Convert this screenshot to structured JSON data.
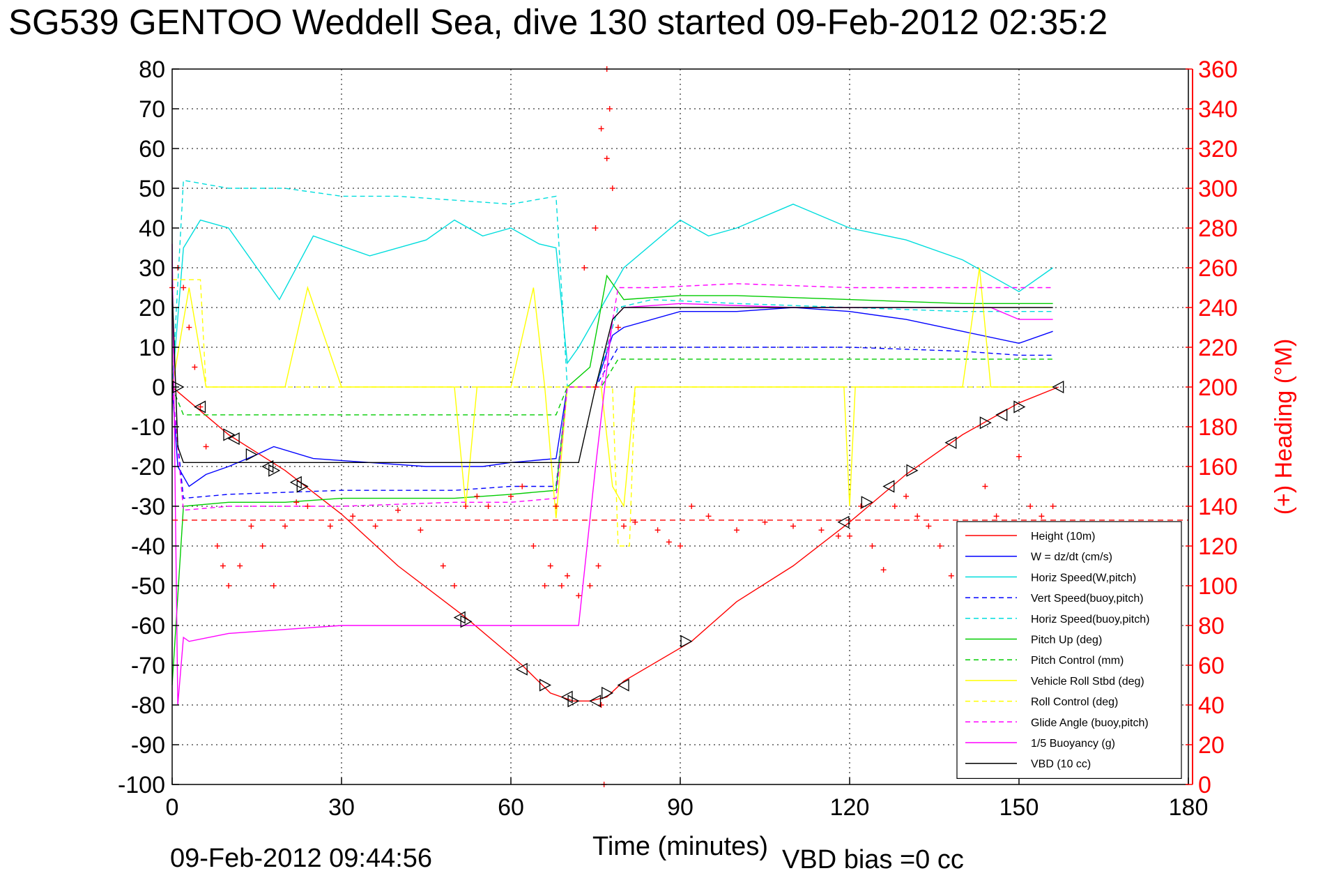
{
  "title": "SG539 GENTOO Weddell Sea, dive 130 started 09-Feb-2012 02:35:2",
  "footer": {
    "timestamp": "09-Feb-2012 09:44:56",
    "vbd_bias": "VBD bias =0 cc"
  },
  "colors": {
    "heading": "#ff0000"
  },
  "chart_data": {
    "type": "line",
    "xlabel": "Time (minutes)",
    "ylabel": "",
    "y2label": "(+) Heading (°M)",
    "xlim": [
      0,
      180
    ],
    "ylim": [
      -100,
      80
    ],
    "y2lim": [
      0,
      360
    ],
    "xticks": [
      0,
      30,
      60,
      90,
      120,
      150,
      180
    ],
    "yticks": [
      80,
      70,
      60,
      50,
      40,
      30,
      20,
      10,
      0,
      -10,
      -20,
      -30,
      -40,
      -50,
      -60,
      -70,
      -80,
      -90,
      -100
    ],
    "y2ticks": [
      360,
      340,
      320,
      300,
      280,
      260,
      240,
      220,
      200,
      180,
      160,
      140,
      120,
      100,
      80,
      60,
      40,
      20,
      0
    ],
    "grid": true,
    "legend_position": "bottom-right",
    "series": [
      {
        "name": "Height (10m)",
        "color": "#ff0000",
        "style": "solid",
        "x": [
          0,
          5,
          10,
          20,
          30,
          40,
          52,
          62,
          67,
          71,
          74,
          77,
          80,
          92,
          100,
          110,
          120,
          130,
          140,
          150,
          157
        ],
        "y": [
          0,
          -6,
          -12,
          -21,
          -32,
          -45,
          -58,
          -70,
          -77,
          -79,
          -79,
          -78,
          -74,
          -64,
          -54,
          -45,
          -34,
          -22,
          -12,
          -4,
          0
        ]
      },
      {
        "name": "W = dz/dt (cm/s)",
        "color": "#0000ff",
        "style": "solid",
        "x": [
          0,
          1,
          3,
          6,
          10,
          15,
          18,
          25,
          35,
          45,
          55,
          60,
          68,
          70,
          72,
          75,
          78,
          80,
          90,
          100,
          110,
          120,
          130,
          140,
          150,
          156
        ],
        "y": [
          0,
          -20,
          -25,
          -22,
          -20,
          -17,
          -15,
          -18,
          -19,
          -20,
          -20,
          -19,
          -18,
          0,
          0,
          0,
          13,
          15,
          19,
          19,
          20,
          19,
          17,
          14,
          11,
          14
        ]
      },
      {
        "name": "Horiz Speed(W,pitch)",
        "color": "#00dddd",
        "style": "solid",
        "x": [
          0,
          2,
          5,
          10,
          15,
          19,
          25,
          35,
          45,
          50,
          55,
          60,
          65,
          68,
          70,
          72,
          76,
          80,
          90,
          95,
          100,
          110,
          120,
          130,
          140,
          150,
          156
        ],
        "y": [
          0,
          35,
          42,
          40,
          30,
          22,
          38,
          33,
          37,
          42,
          38,
          40,
          36,
          35,
          6,
          10,
          20,
          30,
          42,
          38,
          40,
          46,
          40,
          37,
          32,
          24,
          30
        ]
      },
      {
        "name": "Vert Speed(buoy,pitch)",
        "color": "#0000ff",
        "style": "dashed",
        "x": [
          0,
          2,
          10,
          30,
          50,
          60,
          68,
          70,
          75,
          79,
          85,
          100,
          120,
          140,
          150,
          156
        ],
        "y": [
          0,
          -28,
          -27,
          -26,
          -26,
          -25,
          -25,
          0,
          0,
          10,
          10,
          10,
          10,
          9,
          8,
          8
        ]
      },
      {
        "name": "Horiz Speed(buoy,pitch)",
        "color": "#00dddd",
        "style": "dashed",
        "x": [
          0,
          2,
          10,
          20,
          30,
          40,
          50,
          60,
          68,
          70,
          75,
          79,
          85,
          100,
          120,
          140,
          150,
          156
        ],
        "y": [
          0,
          52,
          50,
          50,
          48,
          48,
          47,
          46,
          48,
          0,
          0,
          20,
          22,
          21,
          20,
          19,
          19,
          19
        ]
      },
      {
        "name": "Pitch Up (deg)",
        "color": "#00cc00",
        "style": "solid",
        "x": [
          0,
          2,
          10,
          20,
          30,
          40,
          50,
          60,
          68,
          70,
          74,
          77,
          80,
          90,
          100,
          120,
          140,
          150,
          156
        ],
        "y": [
          -75,
          -30,
          -29,
          -29,
          -28,
          -28,
          -28,
          -27,
          -26,
          0,
          5,
          28,
          22,
          23,
          23,
          22,
          21,
          21,
          21
        ]
      },
      {
        "name": "Pitch Control (mm)",
        "color": "#00cc00",
        "style": "dashed",
        "x": [
          0,
          2,
          10,
          30,
          50,
          68,
          70,
          76,
          79,
          85,
          100,
          120,
          140,
          150,
          156
        ],
        "y": [
          0,
          -7,
          -7,
          -7,
          -7,
          -7,
          0,
          0,
          7,
          7,
          7,
          7,
          7,
          7,
          7
        ]
      },
      {
        "name": "Vehicle Roll Stbd (deg)",
        "color": "#ffff00",
        "style": "solid",
        "x": [
          0,
          3,
          6,
          10,
          14,
          20,
          24,
          30,
          40,
          50,
          52,
          54,
          60,
          64,
          66,
          68,
          70,
          72,
          76,
          78,
          80,
          82,
          90,
          100,
          119,
          120,
          121,
          130,
          140,
          143,
          145,
          150,
          156
        ],
        "y": [
          0,
          25,
          0,
          0,
          0,
          0,
          25,
          0,
          0,
          0,
          -30,
          0,
          0,
          25,
          0,
          -33,
          0,
          0,
          0,
          -25,
          -30,
          0,
          0,
          0,
          0,
          -30,
          0,
          0,
          0,
          30,
          0,
          0,
          0
        ]
      },
      {
        "name": "Roll Control (deg)",
        "color": "#ffff00",
        "style": "dashed",
        "x": [
          0,
          2,
          5,
          6,
          30,
          60,
          70,
          78,
          79,
          80,
          81,
          82,
          100,
          130,
          150,
          156
        ],
        "y": [
          27,
          27,
          27,
          0,
          0,
          0,
          0,
          0,
          -40,
          -40,
          -40,
          0,
          0,
          0,
          0,
          0
        ]
      },
      {
        "name": "Glide Angle (buoy,pitch)",
        "color": "#ff00ff",
        "style": "dashed",
        "x": [
          0,
          2,
          10,
          30,
          50,
          60,
          68,
          70,
          76,
          79,
          85,
          100,
          120,
          140,
          150,
          156
        ],
        "y": [
          0,
          -31,
          -30,
          -30,
          -29,
          -29,
          -28,
          0,
          0,
          25,
          25,
          26,
          25,
          25,
          25,
          25
        ]
      },
      {
        "name": "1/5 Buoyancy (g)",
        "color": "#ff00ff",
        "style": "solid",
        "x": [
          0,
          1,
          2,
          3,
          10,
          20,
          30,
          45,
          60,
          72,
          75,
          78,
          80,
          90,
          110,
          130,
          145,
          150,
          156
        ],
        "y": [
          36,
          -80,
          -63,
          -64,
          -62,
          -61,
          -60,
          -60,
          -60,
          -60,
          -20,
          17,
          20,
          21,
          20,
          20,
          20,
          17,
          17
        ]
      },
      {
        "name": "VBD (10 cc)",
        "color": "#000000",
        "style": "solid",
        "x": [
          0,
          1,
          2,
          3,
          4,
          70,
          72,
          75,
          78,
          80,
          90,
          110,
          130,
          150,
          156
        ],
        "y": [
          25,
          -15,
          -19,
          -19,
          -19,
          -19,
          -19,
          0,
          17,
          20,
          20,
          20,
          20,
          20,
          20
        ]
      }
    ],
    "heading": {
      "name": "(+) Heading",
      "color": "#ff0000",
      "marker": "+",
      "axis": "right",
      "mean_line": 133,
      "x": [
        0,
        1,
        2,
        3,
        4,
        5,
        6,
        8,
        9,
        10,
        12,
        14,
        16,
        18,
        20,
        22,
        24,
        28,
        32,
        36,
        40,
        44,
        48,
        50,
        52,
        54,
        56,
        60,
        62,
        64,
        66,
        67,
        68,
        69,
        70,
        72,
        74,
        75,
        76,
        77,
        78,
        79,
        80,
        82,
        86,
        88,
        90,
        92,
        95,
        100,
        105,
        110,
        115,
        118,
        120,
        122,
        124,
        126,
        128,
        130,
        132,
        134,
        136,
        138,
        140,
        142,
        144,
        146,
        148,
        150,
        152,
        154,
        156
      ],
      "y": [
        250,
        260,
        250,
        230,
        210,
        190,
        170,
        120,
        110,
        100,
        110,
        130,
        120,
        100,
        130,
        142,
        140,
        130,
        135,
        130,
        138,
        128,
        110,
        100,
        140,
        145,
        140,
        145,
        150,
        120,
        100,
        110,
        140,
        100,
        105,
        95,
        100,
        280,
        330,
        315,
        300,
        230,
        130,
        132,
        128,
        122,
        120,
        140,
        135,
        128,
        132,
        130,
        128,
        125,
        125,
        140,
        120,
        108,
        140,
        145,
        135,
        130,
        120,
        105,
        120,
        130,
        150,
        135,
        130,
        165,
        140,
        135,
        140
      ],
      "spikes": [
        {
          "x": 73,
          "y": 260
        },
        {
          "x": 75,
          "y": 200
        },
        {
          "x": 75.5,
          "y": 110
        },
        {
          "x": 76,
          "y": 40
        },
        {
          "x": 76.5,
          "y": 0
        },
        {
          "x": 77,
          "y": 360
        },
        {
          "x": 77.5,
          "y": 340
        }
      ]
    },
    "triangle_markers": {
      "color": "#000000",
      "x": [
        1,
        5,
        10,
        11,
        14,
        17,
        18,
        22,
        23,
        51,
        52,
        62,
        66,
        70,
        71,
        75,
        77,
        80,
        91,
        119,
        123,
        127,
        131,
        138,
        144,
        147,
        150,
        157
      ],
      "y": [
        0,
        -5,
        -12,
        -13,
        -17,
        -20,
        -21,
        -24,
        -25,
        -58,
        -59,
        -71,
        -75,
        -78,
        -79,
        -79,
        -77,
        -75,
        -64,
        -34,
        -29,
        -25,
        -21,
        -14,
        -9,
        -7,
        -5,
        0
      ]
    }
  }
}
